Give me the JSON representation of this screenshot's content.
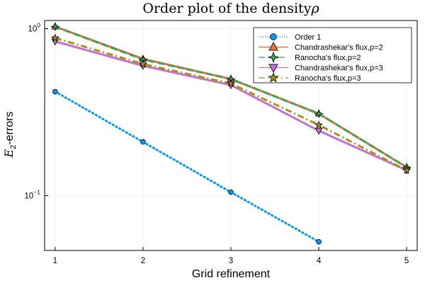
{
  "chart_data": {
    "type": "line",
    "title": "Order plot of the density",
    "title_symbol": "ρ",
    "xlabel": "Grid refinement",
    "ylabel": "-errors",
    "ylabel_math": "E",
    "ylabel_sub": "2",
    "yscale": "log",
    "xlim": [
      0.88,
      5.12
    ],
    "ylim": [
      0.047,
      1.12
    ],
    "x_ticks": [
      1,
      2,
      3,
      4,
      5
    ],
    "y_ticks": [
      {
        "value": 1.0,
        "base": "10",
        "exp": "0"
      },
      {
        "value": 0.1,
        "base": "10",
        "exp": "−1"
      }
    ],
    "grid": true,
    "legend_position": "top-right",
    "series": [
      {
        "name": "Order 1",
        "color": "#009AFA",
        "style": "dotted",
        "marker": "circle",
        "x": [
          1,
          2,
          3,
          4
        ],
        "values": [
          0.42,
          0.21,
          0.105,
          0.053
        ]
      },
      {
        "name": "Chandrashekar's flux,p=2",
        "color": "#E26F46",
        "style": "solid",
        "marker": "triangle-up",
        "x": [
          1,
          2,
          3,
          4,
          5
        ],
        "values": [
          1.03,
          0.66,
          0.5,
          0.31,
          0.148
        ]
      },
      {
        "name": "Ranocha's flux,p=2",
        "color": "#3EA44E",
        "style": "dashed",
        "marker": "star4",
        "x": [
          1,
          2,
          3,
          4,
          5
        ],
        "values": [
          1.03,
          0.655,
          0.5,
          0.31,
          0.148
        ]
      },
      {
        "name": "Chandrashekar's flux,p=3",
        "color": "#C271D2",
        "style": "solid",
        "marker": "triangle-down",
        "x": [
          1,
          2,
          3,
          4,
          5
        ],
        "values": [
          0.84,
          0.6,
          0.46,
          0.245,
          0.142
        ]
      },
      {
        "name": "Ranocha's flux,p=3",
        "color": "#AC8D18",
        "style": "dashdot",
        "marker": "star5",
        "x": [
          1,
          2,
          3,
          4,
          5
        ],
        "values": [
          0.88,
          0.615,
          0.47,
          0.265,
          0.142
        ]
      }
    ]
  }
}
